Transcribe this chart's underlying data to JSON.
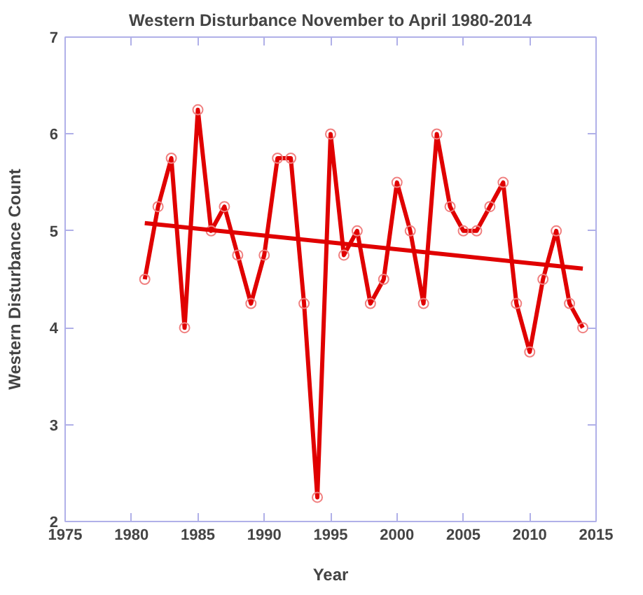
{
  "chart_data": {
    "type": "line",
    "title": "Western Disturbance November to April 1980-2014",
    "xlabel": "Year",
    "ylabel": "Western Disturbance Count",
    "x": [
      1981,
      1982,
      1983,
      1984,
      1985,
      1986,
      1987,
      1988,
      1989,
      1990,
      1991,
      1992,
      1993,
      1994,
      1995,
      1996,
      1997,
      1998,
      1999,
      2000,
      2001,
      2002,
      2003,
      2004,
      2005,
      2006,
      2007,
      2008,
      2009,
      2010,
      2011,
      2012,
      2013,
      2014
    ],
    "series": [
      {
        "color": "#e00000",
        "marker": "circle",
        "values": [
          4.5,
          5.25,
          5.75,
          4.0,
          6.25,
          5.0,
          5.25,
          4.75,
          4.25,
          4.75,
          5.75,
          5.75,
          4.25,
          2.25,
          6.0,
          4.75,
          5.0,
          4.25,
          4.5,
          5.5,
          5.0,
          4.25,
          6.0,
          5.25,
          5.0,
          5.0,
          5.25,
          5.5,
          4.25,
          3.75,
          4.5,
          5.0,
          4.25,
          4.0
        ]
      },
      {
        "type": "line",
        "color": "#e00000",
        "marker": "none",
        "x": [
          1981,
          2014
        ],
        "values": [
          5.08,
          4.61
        ]
      }
    ],
    "xlim": [
      1975,
      2015
    ],
    "xticks": [
      1975,
      1980,
      1985,
      1990,
      1995,
      2000,
      2005,
      2010,
      2015
    ],
    "ylim": [
      2,
      7
    ],
    "yticks": [
      2,
      3,
      4,
      5,
      6,
      7
    ],
    "grid": false,
    "line_style": "solid"
  }
}
